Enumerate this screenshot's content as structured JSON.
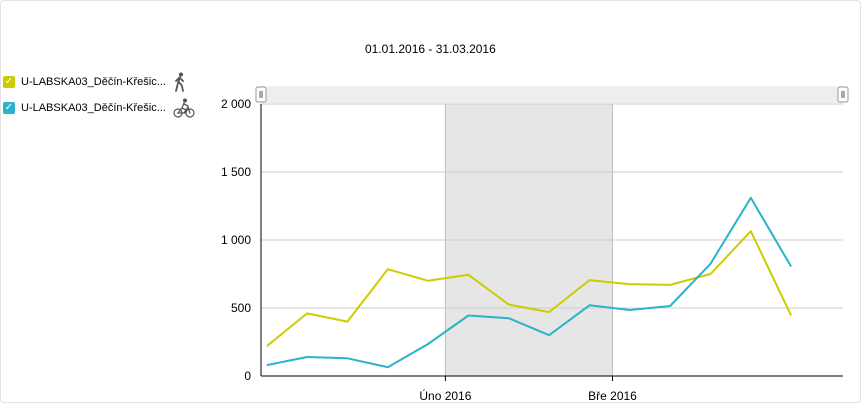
{
  "date_range": "01.01.2016 - 31.03.2016",
  "legend": [
    {
      "label": "U-LABSKA03_Děčín-Křešic...",
      "color": "#cccc00",
      "icon": "pedestrian-icon"
    },
    {
      "label": "U-LABSKA03_Děčín-Křešic...",
      "color": "#2bb3cc",
      "icon": "cyclist-icon"
    }
  ],
  "chart_data": {
    "type": "line",
    "x": [
      "2016-01-01",
      "2016-01-08",
      "2016-01-15",
      "2016-01-22",
      "2016-01-29",
      "2016-02-05",
      "2016-02-12",
      "2016-02-19",
      "2016-02-26",
      "2016-03-04",
      "2016-03-11",
      "2016-03-18",
      "2016-03-25",
      "2016-04-01",
      "2016-04-08"
    ],
    "series": [
      {
        "name": "U-LABSKA03_Děčín-Křešic...",
        "color": "#cccc00",
        "values": [
          220,
          460,
          400,
          785,
          700,
          745,
          525,
          470,
          705,
          675,
          670,
          750,
          1065,
          445,
          null
        ]
      },
      {
        "name": "U-LABSKA03_Děčín-Křešic...",
        "color": "#2bb3cc",
        "values": [
          80,
          140,
          130,
          65,
          235,
          445,
          425,
          300,
          520,
          485,
          515,
          825,
          1310,
          805,
          null
        ]
      }
    ],
    "ylim": [
      0,
      2000
    ],
    "y_ticks": [
      0,
      500,
      1000,
      1500,
      2000
    ],
    "y_tick_labels": [
      "0",
      "500",
      "1 000",
      "1 500",
      "2 000"
    ],
    "x_ticks": [
      {
        "date": "2016-02-01",
        "label": "Úno 2016"
      },
      {
        "date": "2016-03-01",
        "label": "Bře 2016"
      }
    ],
    "shaded_range": [
      "2016-02-01",
      "2016-03-01"
    ],
    "grid": true
  }
}
